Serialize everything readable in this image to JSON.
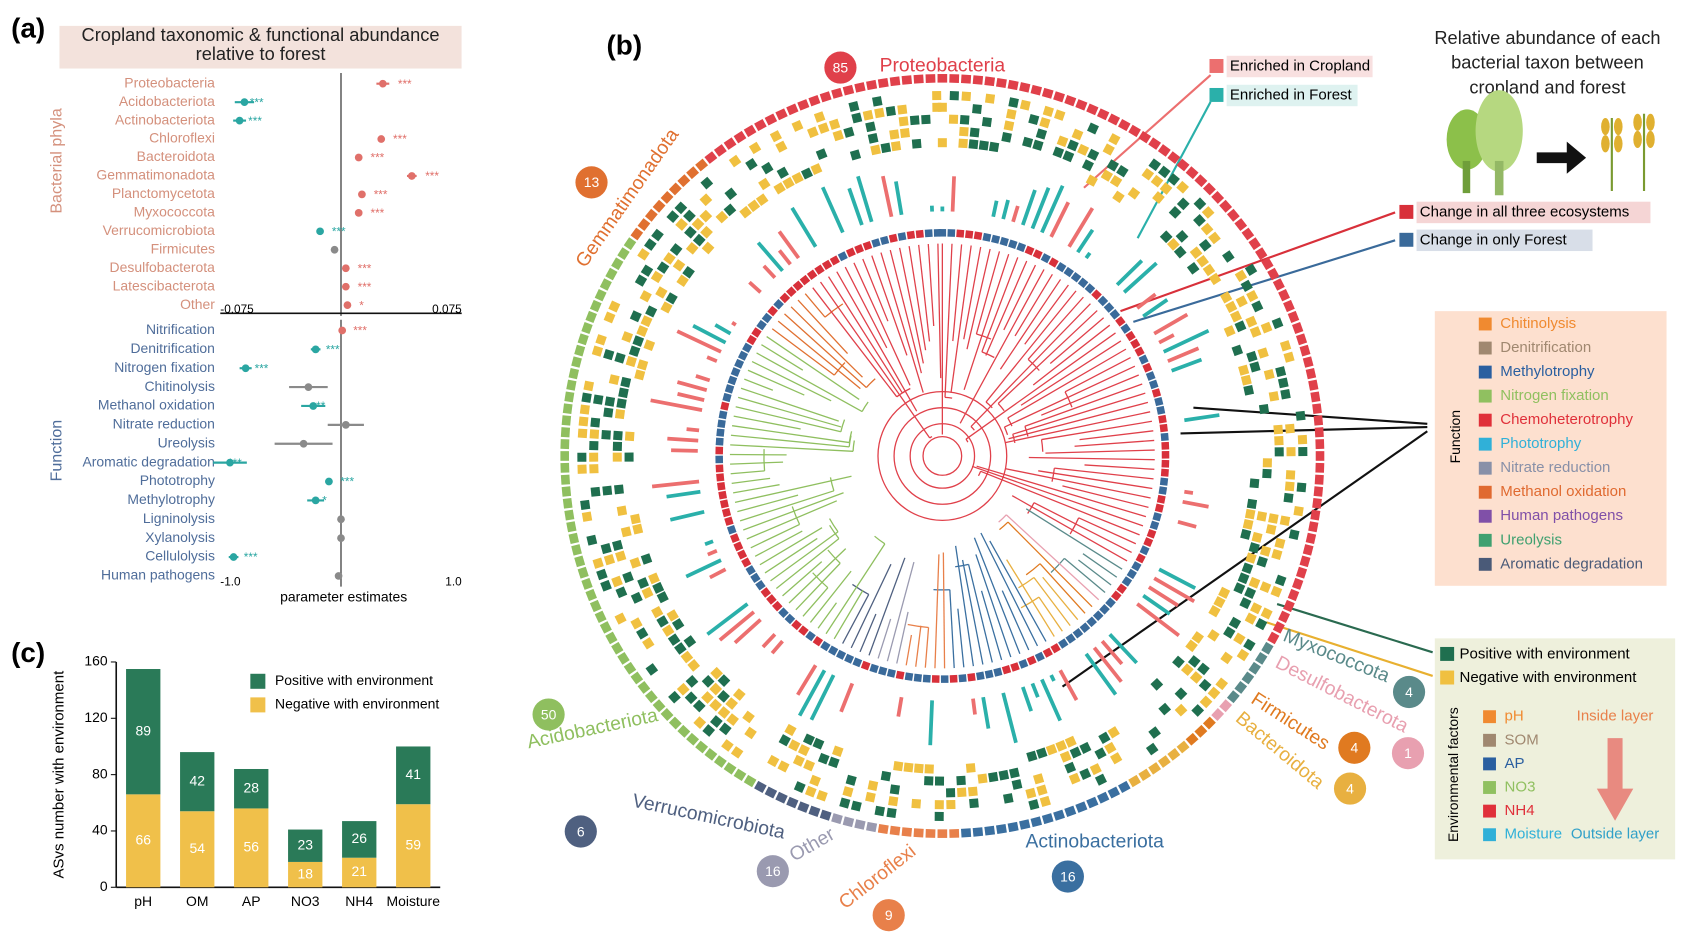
{
  "panel_labels": [
    "(a)",
    "(b)",
    "(c)"
  ],
  "chart_data": [
    {
      "type": "dot",
      "title": "Cropland taxonomic & functional abundance relative to forest",
      "ylabel": "Bacterial phyla",
      "label_color": "#d4907c",
      "categories": [
        "Proteobacteria",
        "Acidobacteriota",
        "Actinobacteriota",
        "Chloroflexi",
        "Bacteroidota",
        "Gemmatimonadota",
        "Planctomycetota",
        "Myxococcota",
        "Verrucomicrobiota",
        "Firmicutes",
        "Desulfobacterota",
        "Latescibacterota",
        "Other"
      ],
      "values": [
        0.026,
        -0.06,
        -0.063,
        0.025,
        0.011,
        0.044,
        0.013,
        0.011,
        -0.013,
        -0.004,
        0.003,
        0.003,
        0.004
      ],
      "errors": [
        0.004,
        0.006,
        0.004,
        0.002,
        0.002,
        0.003,
        0.002,
        0.002,
        0.002,
        0.002,
        0.002,
        0.002,
        0.002
      ],
      "annotations": [
        "***",
        "***",
        "***",
        "***",
        "***",
        "***",
        "***",
        "***",
        "***",
        null,
        "***",
        "***",
        "*"
      ],
      "colors": {
        "positive": "#e0706a",
        "negative": "#2aa6a2",
        "neutral": "#8a8a8a"
      },
      "xlim": [
        -0.075,
        0.075
      ],
      "xticks": [
        -0.075,
        0.075
      ]
    },
    {
      "type": "dot",
      "ylabel": "Function",
      "xlabel": "parameter estimates",
      "label_color": "#4f6d9a",
      "categories": [
        "Nitrification",
        "Denitrification",
        "Nitrogen fixation",
        "Chitinolysis",
        "Methanol oxidation",
        "Nitrate reduction",
        "Ureolysis",
        "Aromatic degradation",
        "Phototrophy",
        "Methylotrophy",
        "Ligninolysis",
        "Xylanolysis",
        "Cellulolysis",
        "Human pathogens"
      ],
      "values": [
        0.01,
        -0.21,
        -0.79,
        -0.27,
        -0.23,
        0.04,
        -0.31,
        -0.92,
        -0.1,
        -0.21,
        0,
        0,
        -0.89,
        -0.02
      ],
      "errors": [
        0.02,
        0.04,
        0.05,
        0.16,
        0.1,
        0.15,
        0.24,
        0.14,
        0.03,
        0.07,
        0.02,
        0.02,
        0.04,
        0.02
      ],
      "annotations": [
        "***",
        "***",
        "***",
        null,
        "**",
        null,
        null,
        "***",
        "***",
        "*",
        null,
        null,
        "***",
        null
      ],
      "colors": {
        "positive": "#e0706a",
        "negative": "#2aa6a2",
        "neutral": "#8a8a8a"
      },
      "xlim": [
        -1,
        1
      ],
      "xticks": [
        {
          "value": -1,
          "label": "-1.0"
        },
        {
          "value": 1,
          "label": "1.0"
        }
      ]
    },
    {
      "type": "stacked_bar",
      "ylabel": "ASvs number with environment",
      "categories": [
        "pH",
        "OM",
        "AP",
        "NO3",
        "NH4",
        "Moisture"
      ],
      "series": [
        {
          "name": "Positive with environment",
          "color": "#2a7a58",
          "values": [
            89,
            42,
            28,
            23,
            26,
            41
          ]
        },
        {
          "name": "Negative with environment",
          "color": "#f0c04a",
          "values": [
            66,
            54,
            56,
            18,
            21,
            59
          ]
        }
      ],
      "ylim": [
        0,
        160
      ],
      "yticks": [
        0,
        40,
        80,
        120,
        160
      ]
    }
  ],
  "panel_b": {
    "title": "Relative abundance of each bacterial taxon between cropland and forest",
    "phyla": [
      {
        "name": "Proteobacteria",
        "count": 85,
        "color": "#e0404a"
      },
      {
        "name": "Gemmatimonadota",
        "count": 13,
        "color": "#e07030"
      },
      {
        "name": "Acidobacteriota",
        "count": 50,
        "color": "#8fbf5f"
      },
      {
        "name": "Verrucomicrobiota",
        "count": 6,
        "color": "#4f6080"
      },
      {
        "name": "Other",
        "count": 16,
        "color": "#9a9ab0"
      },
      {
        "name": "Chloroflexi",
        "count": 9,
        "color": "#e8804a"
      },
      {
        "name": "Actinobacteriota",
        "count": 16,
        "color": "#3a6fa0"
      },
      {
        "name": "Bacteroidota",
        "count": 4,
        "color": "#e8b040"
      },
      {
        "name": "Firmicutes",
        "count": 4,
        "color": "#e07a20"
      },
      {
        "name": "Desulfobacterota",
        "count": 1,
        "color": "#e8a0b0"
      },
      {
        "name": "Myxococcota",
        "count": 4,
        "color": "#5a8a8a"
      }
    ],
    "abundance_legend": [
      {
        "label": "Enriched in Cropland",
        "color": "#ec6f6f",
        "background": "#f8e0e0"
      },
      {
        "label": "Enriched in Forest",
        "color": "#2ab0aa",
        "background": "#def2f0"
      }
    ],
    "change_legend": [
      {
        "label": "Change in all three ecosystems",
        "color": "#d8303a",
        "background": "#f5d5d5"
      },
      {
        "label": "Change in only Forest",
        "color": "#3a6a9a",
        "background": "#d8dee8"
      }
    ],
    "function_legend": {
      "title": "Function",
      "items": [
        {
          "label": "Chitinolysis",
          "color": "#f08a30"
        },
        {
          "label": "Denitrification",
          "color": "#a08870"
        },
        {
          "label": "Methylotrophy",
          "color": "#2a5fa0"
        },
        {
          "label": "Nitrogen fixation",
          "color": "#90c060"
        },
        {
          "label": "Chemoheterotrophy",
          "color": "#e0303a"
        },
        {
          "label": "Phototrophy",
          "color": "#30b0d8"
        },
        {
          "label": "Nitrate reduction",
          "color": "#8890a8"
        },
        {
          "label": "Methanol oxidation",
          "color": "#e06a30"
        },
        {
          "label": "Human pathogens",
          "color": "#8050a8"
        },
        {
          "label": "Ureolysis",
          "color": "#40a070"
        },
        {
          "label": "Aromatic degradation",
          "color": "#4a5a78"
        }
      ]
    },
    "heat_legend": [
      {
        "label": "Positive with environment",
        "color": "#1f6f4f"
      },
      {
        "label": "Negative with environment",
        "color": "#f0c040"
      }
    ],
    "environment_legend": {
      "title": "Environmental factors",
      "items": [
        {
          "label": "pH",
          "color": "#f08a30"
        },
        {
          "label": "SOM",
          "color": "#a08870"
        },
        {
          "label": "AP",
          "color": "#2a5fa0"
        },
        {
          "label": "NO3",
          "color": "#90c060"
        },
        {
          "label": "NH4",
          "color": "#e0303a"
        },
        {
          "label": "Moisture",
          "color": "#30b0d8"
        }
      ],
      "inside": "Inside layer",
      "outside": "Outside layer"
    }
  }
}
